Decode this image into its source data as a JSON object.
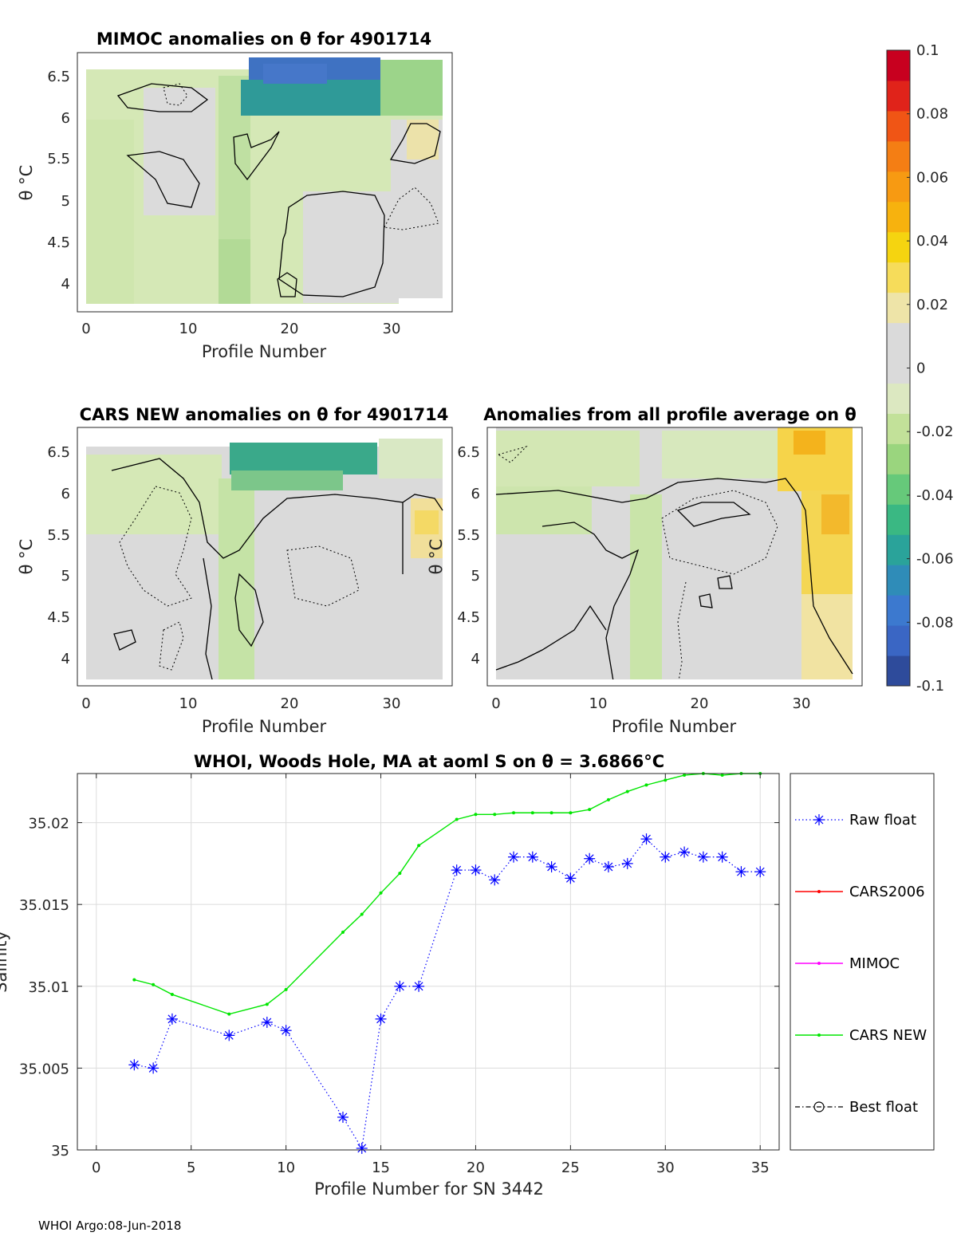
{
  "colorbar": {
    "min": -0.1,
    "max": 0.1,
    "tick_labels": [
      "0.1",
      "0.08",
      "0.06",
      "0.04",
      "0.02",
      "0",
      "-0.02",
      "-0.04",
      "-0.06",
      "-0.08",
      "-0.1"
    ],
    "colors": [
      "#2e4b9b",
      "#3a66c4",
      "#3c79cf",
      "#2f8cb8",
      "#2aa39a",
      "#3ab883",
      "#66c97a",
      "#9ad57e",
      "#c2e199",
      "#dce8c1",
      "#dadada",
      "#dadada",
      "#eee4a8",
      "#f6dc5a",
      "#f5d410",
      "#f7b20e",
      "#f79a12",
      "#f47e14",
      "#f05515",
      "#e0231a",
      "#c8001f"
    ]
  },
  "heatmaps": [
    {
      "title": "MIMOC anomalies on θ  for 4901714",
      "xlabel": "Profile Number",
      "ylabel": "θ °C",
      "xticks": [
        "0",
        "10",
        "20",
        "30"
      ],
      "yticks": [
        "6.5",
        "6",
        "5.5",
        "5",
        "4.5",
        "4"
      ],
      "xlim": [
        -1,
        36
      ],
      "ylim": [
        3.6,
        6.8
      ]
    },
    {
      "title": "CARS NEW anomalies on θ for 4901714",
      "xlabel": "Profile Number",
      "ylabel": "θ °C",
      "xticks": [
        "0",
        "10",
        "20",
        "30"
      ],
      "yticks": [
        "6.5",
        "6",
        "5.5",
        "5",
        "4.5",
        "4"
      ],
      "xlim": [
        -1,
        36
      ],
      "ylim": [
        3.6,
        6.8
      ]
    },
    {
      "title": "Anomalies from all profile average on θ",
      "xlabel": "Profile Number",
      "ylabel": "θ °C",
      "xticks": [
        "0",
        "10",
        "20",
        "30"
      ],
      "yticks": [
        "6.5",
        "6",
        "5.5",
        "5",
        "4.5",
        "4"
      ],
      "xlim": [
        -1,
        36
      ],
      "ylim": [
        3.6,
        6.8
      ]
    }
  ],
  "chart_data": {
    "type": "line",
    "title": "WHOI, Woods Hole, MA at aoml S on θ = 3.6866°C",
    "xlabel": "Profile Number for SN 3442",
    "ylabel": "Salinity",
    "xlim": [
      -1,
      36
    ],
    "ylim": [
      35,
      35.023
    ],
    "xticks": [
      0,
      5,
      10,
      15,
      20,
      25,
      30,
      35
    ],
    "yticks": [
      35,
      35.005,
      35.01,
      35.015,
      35.02
    ],
    "ytick_labels": [
      "35",
      "35.005",
      "35.01",
      "35.015",
      "35.02"
    ],
    "grid": true,
    "legend_placement": "outside-right",
    "series": [
      {
        "name": "Raw float",
        "color": "#0000ff",
        "style": "dotted-asterisk",
        "x": [
          2,
          3,
          4,
          7,
          9,
          10,
          13,
          14,
          15,
          16,
          17,
          19,
          20,
          21,
          22,
          23,
          24,
          25,
          26,
          27,
          28,
          29,
          30,
          31,
          32,
          33,
          34,
          35
        ],
        "y": [
          35.0052,
          35.005,
          35.008,
          35.007,
          35.0078,
          35.0073,
          35.002,
          35.0001,
          35.008,
          35.01,
          35.01,
          35.0171,
          35.0171,
          35.0165,
          35.0179,
          35.0179,
          35.0173,
          35.0166,
          35.0178,
          35.0173,
          35.0175,
          35.019,
          35.0179,
          35.0182,
          35.0179,
          35.0179,
          35.017,
          35.017
        ]
      },
      {
        "name": "CARS2006",
        "color": "#ff0000",
        "style": "solid-dot",
        "x": [],
        "y": []
      },
      {
        "name": "MIMOC",
        "color": "#ff00ff",
        "style": "solid-dot",
        "x": [],
        "y": []
      },
      {
        "name": "CARS NEW",
        "color": "#00e600",
        "style": "solid-dot",
        "x": [
          2,
          3,
          4,
          7,
          9,
          10,
          13,
          14,
          15,
          16,
          17,
          19,
          20,
          21,
          22,
          23,
          24,
          25,
          26,
          27,
          28,
          29,
          30,
          31,
          32,
          33,
          34,
          35
        ],
        "y": [
          35.0104,
          35.0101,
          35.0095,
          35.0083,
          35.0089,
          35.0098,
          35.0133,
          35.0144,
          35.0157,
          35.0169,
          35.0186,
          35.0202,
          35.0205,
          35.0205,
          35.0206,
          35.0206,
          35.0206,
          35.0206,
          35.0208,
          35.0214,
          35.0219,
          35.0223,
          35.0226,
          35.0229,
          35.023,
          35.0229,
          35.023,
          35.023
        ]
      },
      {
        "name": "Best float",
        "color": "#000000",
        "style": "dashdot-circle",
        "x": [],
        "y": []
      }
    ]
  },
  "footer": "WHOI Argo:08-Jun-2018"
}
